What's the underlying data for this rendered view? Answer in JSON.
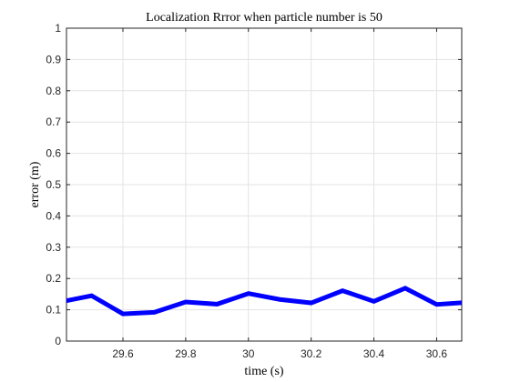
{
  "chart_data": {
    "type": "line",
    "title": "Localization Rrror when particle number is 50",
    "xlabel": "time (s)",
    "ylabel": "error (m)",
    "xlim": [
      29.42,
      30.68
    ],
    "ylim": [
      0,
      1
    ],
    "xticks": [
      29.6,
      29.8,
      30,
      30.2,
      30.4,
      30.6
    ],
    "xtick_labels": [
      "29.6",
      "29.8",
      "30",
      "30.2",
      "30.4",
      "30.6"
    ],
    "yticks": [
      0,
      0.1,
      0.2,
      0.3,
      0.4,
      0.5,
      0.6,
      0.7,
      0.8,
      0.9,
      1
    ],
    "ytick_labels": [
      "0",
      "0.1",
      "0.2",
      "0.3",
      "0.4",
      "0.5",
      "0.6",
      "0.7",
      "0.8",
      "0.9",
      "1"
    ],
    "grid": true,
    "series": [
      {
        "color": "#0000ff",
        "x": [
          29.4,
          29.5,
          29.6,
          29.7,
          29.8,
          29.9,
          30.0,
          30.1,
          30.2,
          30.3,
          30.4,
          30.5,
          30.6,
          30.7
        ],
        "y": [
          0.125,
          0.145,
          0.087,
          0.092,
          0.125,
          0.118,
          0.152,
          0.133,
          0.122,
          0.161,
          0.127,
          0.169,
          0.117,
          0.124
        ]
      }
    ]
  }
}
